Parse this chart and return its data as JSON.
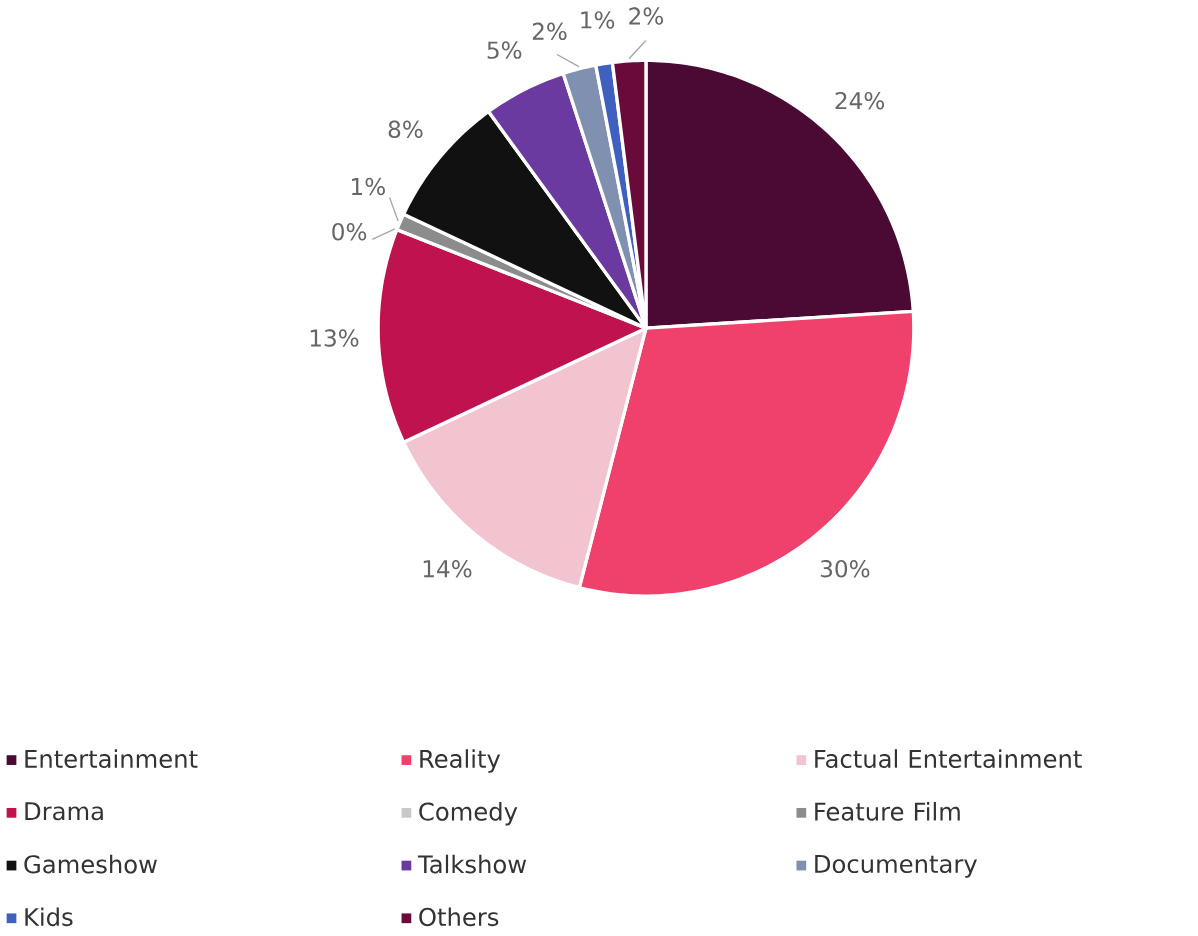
{
  "chart_data": {
    "type": "pie",
    "categories": [
      "Entertainment",
      "Reality",
      "Factual Entertainment",
      "Drama",
      "Comedy",
      "Feature Film",
      "Gameshow",
      "Talkshow",
      "Documentary",
      "Kids",
      "Others"
    ],
    "values": [
      24,
      30,
      14,
      13,
      0,
      1,
      8,
      5,
      2,
      1,
      2
    ],
    "value_labels": [
      "24%",
      "30%",
      "14%",
      "13%",
      "0%",
      "1%",
      "8%",
      "5%",
      "2%",
      "1%",
      "2%"
    ],
    "colors": [
      "#4a0a33",
      "#f0406c",
      "#f2c4d0",
      "#c0124e",
      "#c8c8c8",
      "#8c8c8c",
      "#111111",
      "#6a3aa0",
      "#8090b0",
      "#4060c0",
      "#6a0a3a"
    ],
    "legend": "bottom"
  }
}
